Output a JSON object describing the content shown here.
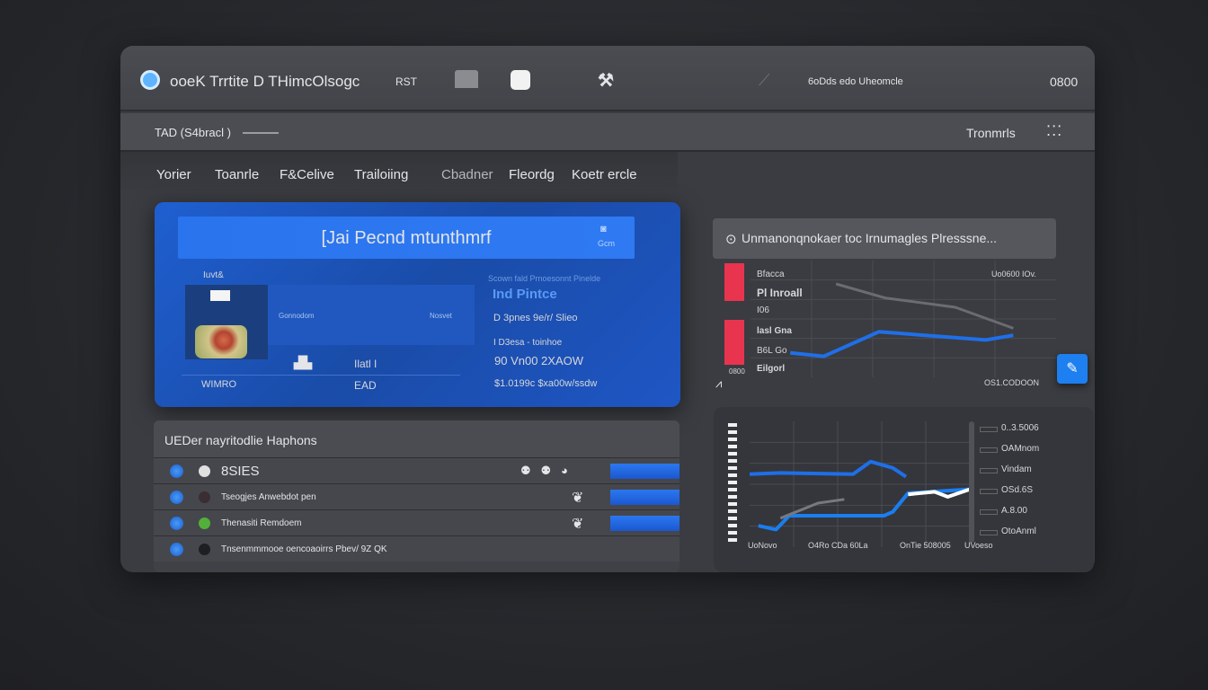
{
  "header": {
    "app_title": "ooeK Trrtite D THimcOlsogc",
    "badge": "RST",
    "status_text": "6oDds edo Uheomcle",
    "counter": "0800"
  },
  "subbar": {
    "breadcrumb": "TAD (S4bracl )",
    "right_label": "Tronmrls"
  },
  "tabs": [
    {
      "label": "Yorier"
    },
    {
      "label": "Toanrle"
    },
    {
      "label": "F&Celive"
    },
    {
      "label": "Trailoiing"
    },
    {
      "label": "Cbadner"
    },
    {
      "label": "Fleordg"
    },
    {
      "label": "Koetr ercle"
    }
  ],
  "profile_card": {
    "title": "[Jai Pecnd mtunthmrf",
    "corner_label": "Gcm",
    "small_label": "Iuvt&",
    "avatar_label": "WIMRO",
    "left_stat": "Ilatl I",
    "left_stat2": "EAD",
    "mid_label": "Gonnodom",
    "mid_label2": "Nosvet",
    "right_header": "Scown fald Prnoesonnt Pinelde",
    "right_title": "Ind Pintce",
    "details": [
      "D 3pnes 9e/r/ Slieo",
      "I D3esa - toinhoe",
      "90 Vn00  2XAOW",
      "$1.0199c  $xa00w/ssdw"
    ],
    "accent": "#1f5fd0"
  },
  "chart_top": {
    "title": "Unmanonqnokaer toc Irnumagles  Plresssne...",
    "labels": [
      "Bfacca",
      "Pl   Inroall",
      "I06",
      "lasl Gna",
      "B6L Go",
      "Eilgorl"
    ],
    "corner": "Uo0600 IOv.",
    "xlabel": "OS1.CODOON",
    "side_label": "0800",
    "series": [
      {
        "color": "#1f6fe8",
        "x": [
          13,
          24,
          42,
          77,
          86
        ],
        "y": [
          21,
          18,
          39,
          32,
          36
        ]
      },
      {
        "color": "#6a6c71",
        "x": [
          28,
          44,
          67,
          86
        ],
        "y": [
          80,
          68,
          60,
          42
        ]
      }
    ]
  },
  "chart_bottom": {
    "legend": [
      "0..3.5006",
      "OAMnom",
      "Vindam",
      "OSd.6S",
      "A.8.00",
      "OtoAnml"
    ],
    "xticks": [
      "UoNovo",
      "O4Ro CDa 60La",
      "OnTie 508005",
      "UVoeso"
    ],
    "series": [
      {
        "color": "#1f6fe8",
        "x": [
          0,
          14,
          47,
          55,
          65,
          71
        ],
        "y": [
          58,
          59,
          58,
          68,
          63,
          56
        ]
      },
      {
        "color": "#1a7ef0",
        "x": [
          4,
          12,
          18,
          61,
          65,
          72,
          100
        ],
        "y": [
          17,
          14,
          25,
          25,
          28,
          43,
          46
        ]
      },
      {
        "color": "#ffffff",
        "x": [
          72,
          84,
          90,
          100
        ],
        "y": [
          42,
          44,
          40,
          46
        ]
      },
      {
        "color": "#77797e",
        "x": [
          14,
          31,
          43
        ],
        "y": [
          23,
          35,
          38
        ]
      }
    ]
  },
  "list": {
    "title": "UEDer nayritodlie  Haphons",
    "rows": [
      {
        "text": "8SIES",
        "dot": "#e0e0e0",
        "bar": true
      },
      {
        "text": "Tseogjes  Anwebdot pen",
        "dot": "#3a2e33",
        "bar": true
      },
      {
        "text": "Thenasiti  Remdoem",
        "dot": "#52b03a",
        "bar": true
      },
      {
        "text": "Tnsenmmmooe  oencoaoirrs  Pbev/  9Z QK",
        "dot": "#1e1f22",
        "bar": false
      }
    ]
  },
  "action_button": {
    "icon": "edit-icon",
    "color": "#1e7ff0"
  }
}
